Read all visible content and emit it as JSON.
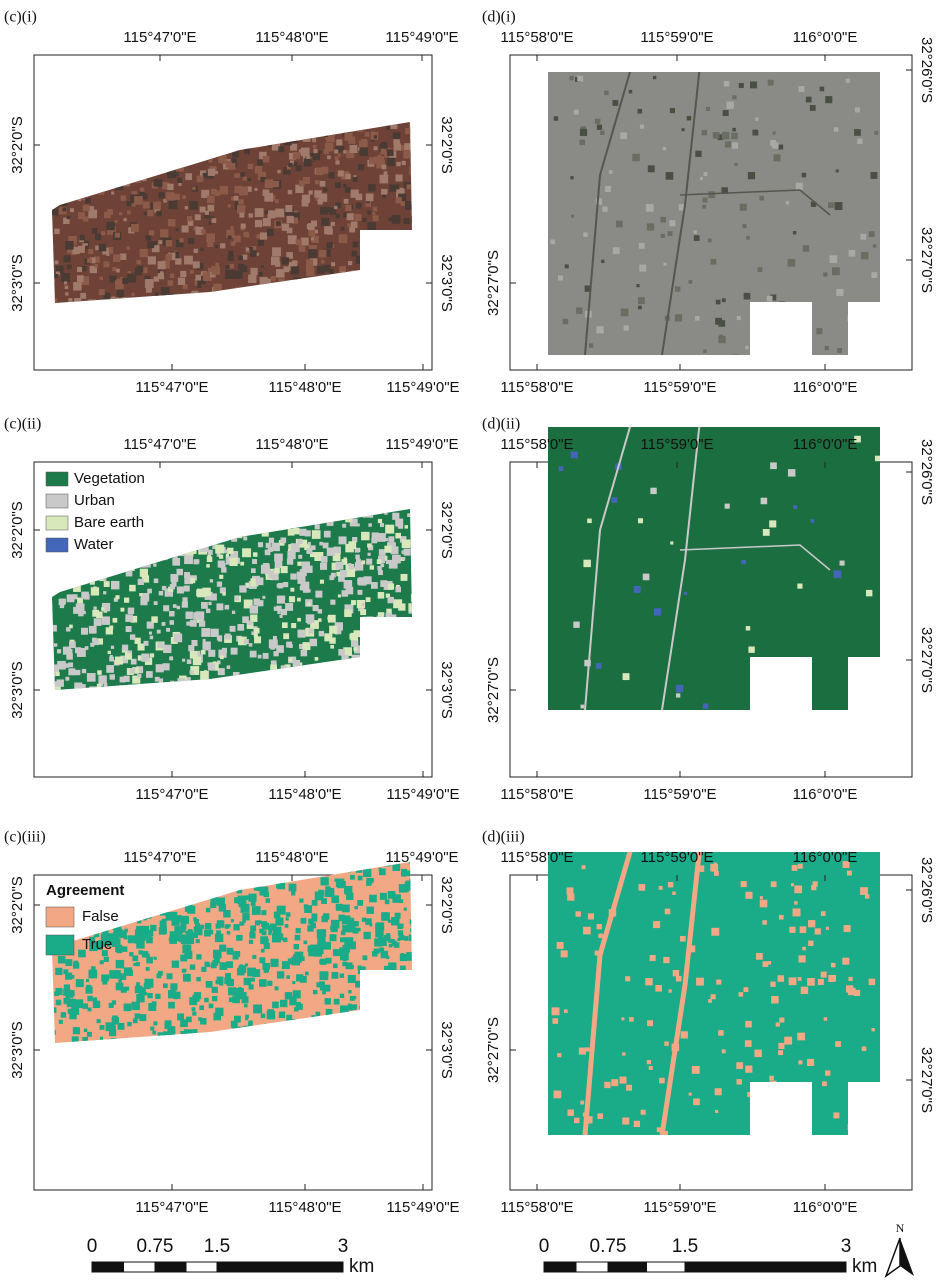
{
  "panels": [
    {
      "label": "(c)(i)",
      "top_ticks": [
        "115°47'0\"E",
        "115°48'0\"E",
        "115°49'0\"E"
      ],
      "bottom_ticks": [
        "115°47'0\"E",
        "115°48'0\"E",
        "115°49'0\"E"
      ],
      "left_ticks": [
        "32°2'0\"S",
        "32°3'0\"S"
      ],
      "right_ticks": [
        "32°2'0\"S",
        "32°3'0\"S"
      ]
    },
    {
      "label": "(d)(i)",
      "top_ticks": [
        "115°58'0\"E",
        "115°59'0\"E",
        "116°0'0\"E"
      ],
      "bottom_ticks": [
        "115°58'0\"E",
        "115°59'0\"E",
        "116°0'0\"E"
      ],
      "left_ticks": [
        "32°27'0\"S"
      ],
      "right_ticks": [
        "32°26'0\"S",
        "32°27'0\"S"
      ]
    },
    {
      "label": "(c)(ii)",
      "top_ticks": [
        "115°47'0\"E",
        "115°48'0\"E",
        "115°49'0\"E"
      ],
      "bottom_ticks": [
        "115°47'0\"E",
        "115°48'0\"E",
        "115°49'0\"E"
      ],
      "left_ticks": [
        "32°2'0\"S",
        "32°3'0\"S"
      ],
      "right_ticks": [
        "32°2'0\"S",
        "32°3'0\"S"
      ],
      "legend": {
        "items": [
          {
            "label": "Vegetation",
            "color": "#1c7a4b"
          },
          {
            "label": "Urban",
            "color": "#c9c9c9"
          },
          {
            "label": "Bare earth",
            "color": "#d9e8bb"
          },
          {
            "label": "Water",
            "color": "#4466b8"
          }
        ]
      }
    },
    {
      "label": "(d)(ii)",
      "top_ticks": [
        "115°58'0\"E",
        "115°59'0\"E",
        "116°0'0\"E"
      ],
      "bottom_ticks": [
        "115°58'0\"E",
        "115°59'0\"E",
        "116°0'0\"E"
      ],
      "left_ticks": [
        "32°27'0\"S"
      ],
      "right_ticks": [
        "32°26'0\"S",
        "32°27'0\"S"
      ]
    },
    {
      "label": "(c)(iii)",
      "top_ticks": [
        "115°47'0\"E",
        "115°48'0\"E",
        "115°49'0\"E"
      ],
      "bottom_ticks": [
        "115°47'0\"E",
        "115°48'0\"E",
        "115°49'0\"E"
      ],
      "left_ticks": [
        "32°2'0\"S",
        "32°3'0\"S"
      ],
      "right_ticks": [
        "32°2'0\"S",
        "32°3'0\"S"
      ],
      "legend": {
        "title": "Agreement",
        "items": [
          {
            "label": "False",
            "color": "#f2a884"
          },
          {
            "label": "True",
            "color": "#1aab88"
          }
        ]
      }
    },
    {
      "label": "(d)(iii)",
      "top_ticks": [
        "115°58'0\"E",
        "115°59'0\"E",
        "116°0'0\"E"
      ],
      "bottom_ticks": [
        "115°58'0\"E",
        "115°59'0\"E",
        "116°0'0\"E"
      ],
      "left_ticks": [
        "32°27'0\"S"
      ],
      "right_ticks": [
        "32°26'0\"S",
        "32°27'0\"S"
      ]
    }
  ],
  "scale_bars": [
    {
      "ticks": [
        "0",
        "0.75",
        "1.5",
        "3"
      ],
      "unit": "km"
    },
    {
      "ticks": [
        "0",
        "0.75",
        "1.5",
        "3"
      ],
      "unit": "km"
    }
  ],
  "north_arrow": "N"
}
